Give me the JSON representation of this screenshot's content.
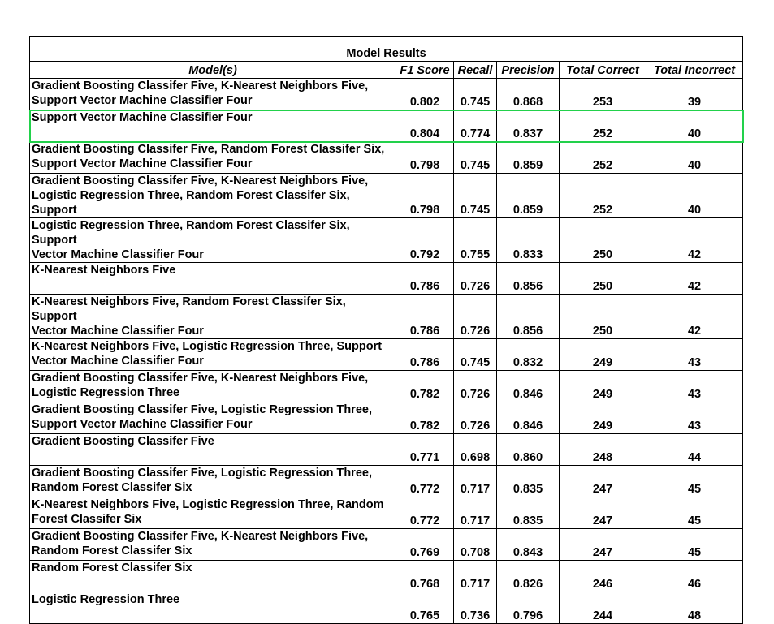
{
  "table": {
    "title": "Model Results",
    "headers": [
      "Model(s)",
      "F1 Score",
      "Recall",
      "Precision",
      "Total Correct",
      "Total Incorrect"
    ],
    "rows": [
      {
        "model": "Gradient Boosting Classifer Five, K-Nearest Neighbors Five,\nSupport Vector Machine Classifier Four",
        "f1": "0.802",
        "recall": "0.745",
        "precision": "0.868",
        "correct": "253",
        "incorrect": "39"
      },
      {
        "model": "Support Vector Machine Classifier Four",
        "f1": "0.804",
        "recall": "0.774",
        "precision": "0.837",
        "correct": "252",
        "incorrect": "40"
      },
      {
        "model": "Gradient Boosting Classifer Five, Random Forest Classifer Six,\nSupport Vector Machine Classifier Four",
        "f1": "0.798",
        "recall": "0.745",
        "precision": "0.859",
        "correct": "252",
        "incorrect": "40"
      },
      {
        "model": "Gradient Boosting Classifer Five, K-Nearest Neighbors Five,\nLogistic Regression Three, Random Forest Classifer Six, Support",
        "f1": "0.798",
        "recall": "0.745",
        "precision": "0.859",
        "correct": "252",
        "incorrect": "40"
      },
      {
        "model": "Logistic Regression Three, Random Forest Classifer Six, Support\nVector Machine Classifier Four",
        "f1": "0.792",
        "recall": "0.755",
        "precision": "0.833",
        "correct": "250",
        "incorrect": "42"
      },
      {
        "model": "K-Nearest Neighbors Five",
        "f1": "0.786",
        "recall": "0.726",
        "precision": "0.856",
        "correct": "250",
        "incorrect": "42"
      },
      {
        "model": "K-Nearest Neighbors Five, Random Forest Classifer Six, Support\nVector Machine Classifier Four",
        "f1": "0.786",
        "recall": "0.726",
        "precision": "0.856",
        "correct": "250",
        "incorrect": "42"
      },
      {
        "model": "K-Nearest Neighbors Five, Logistic Regression Three, Support\nVector Machine Classifier Four",
        "f1": "0.786",
        "recall": "0.745",
        "precision": "0.832",
        "correct": "249",
        "incorrect": "43"
      },
      {
        "model": "Gradient Boosting Classifer Five, K-Nearest Neighbors Five,\nLogistic Regression Three",
        "f1": "0.782",
        "recall": "0.726",
        "precision": "0.846",
        "correct": "249",
        "incorrect": "43"
      },
      {
        "model": "Gradient Boosting Classifer Five, Logistic Regression Three,\nSupport Vector Machine Classifier Four",
        "f1": "0.782",
        "recall": "0.726",
        "precision": "0.846",
        "correct": "249",
        "incorrect": "43"
      },
      {
        "model": "Gradient Boosting Classifer Five",
        "f1": "0.771",
        "recall": "0.698",
        "precision": "0.860",
        "correct": "248",
        "incorrect": "44"
      },
      {
        "model": "Gradient Boosting Classifer Five, Logistic Regression Three,\nRandom Forest Classifer Six",
        "f1": "0.772",
        "recall": "0.717",
        "precision": "0.835",
        "correct": "247",
        "incorrect": "45"
      },
      {
        "model": "K-Nearest Neighbors Five, Logistic Regression Three, Random\nForest Classifer Six",
        "f1": "0.772",
        "recall": "0.717",
        "precision": "0.835",
        "correct": "247",
        "incorrect": "45"
      },
      {
        "model": "Gradient Boosting Classifer Five, K-Nearest Neighbors Five,\nRandom Forest Classifer Six",
        "f1": "0.769",
        "recall": "0.708",
        "precision": "0.843",
        "correct": "247",
        "incorrect": "45"
      },
      {
        "model": "Random Forest Classifer Six",
        "f1": "0.768",
        "recall": "0.717",
        "precision": "0.826",
        "correct": "246",
        "incorrect": "46"
      },
      {
        "model": "Logistic Regression Three",
        "f1": "0.765",
        "recall": "0.736",
        "precision": "0.796",
        "correct": "244",
        "incorrect": "48"
      }
    ],
    "highlighted_row": 1,
    "highlight_color": "#22d14b"
  }
}
